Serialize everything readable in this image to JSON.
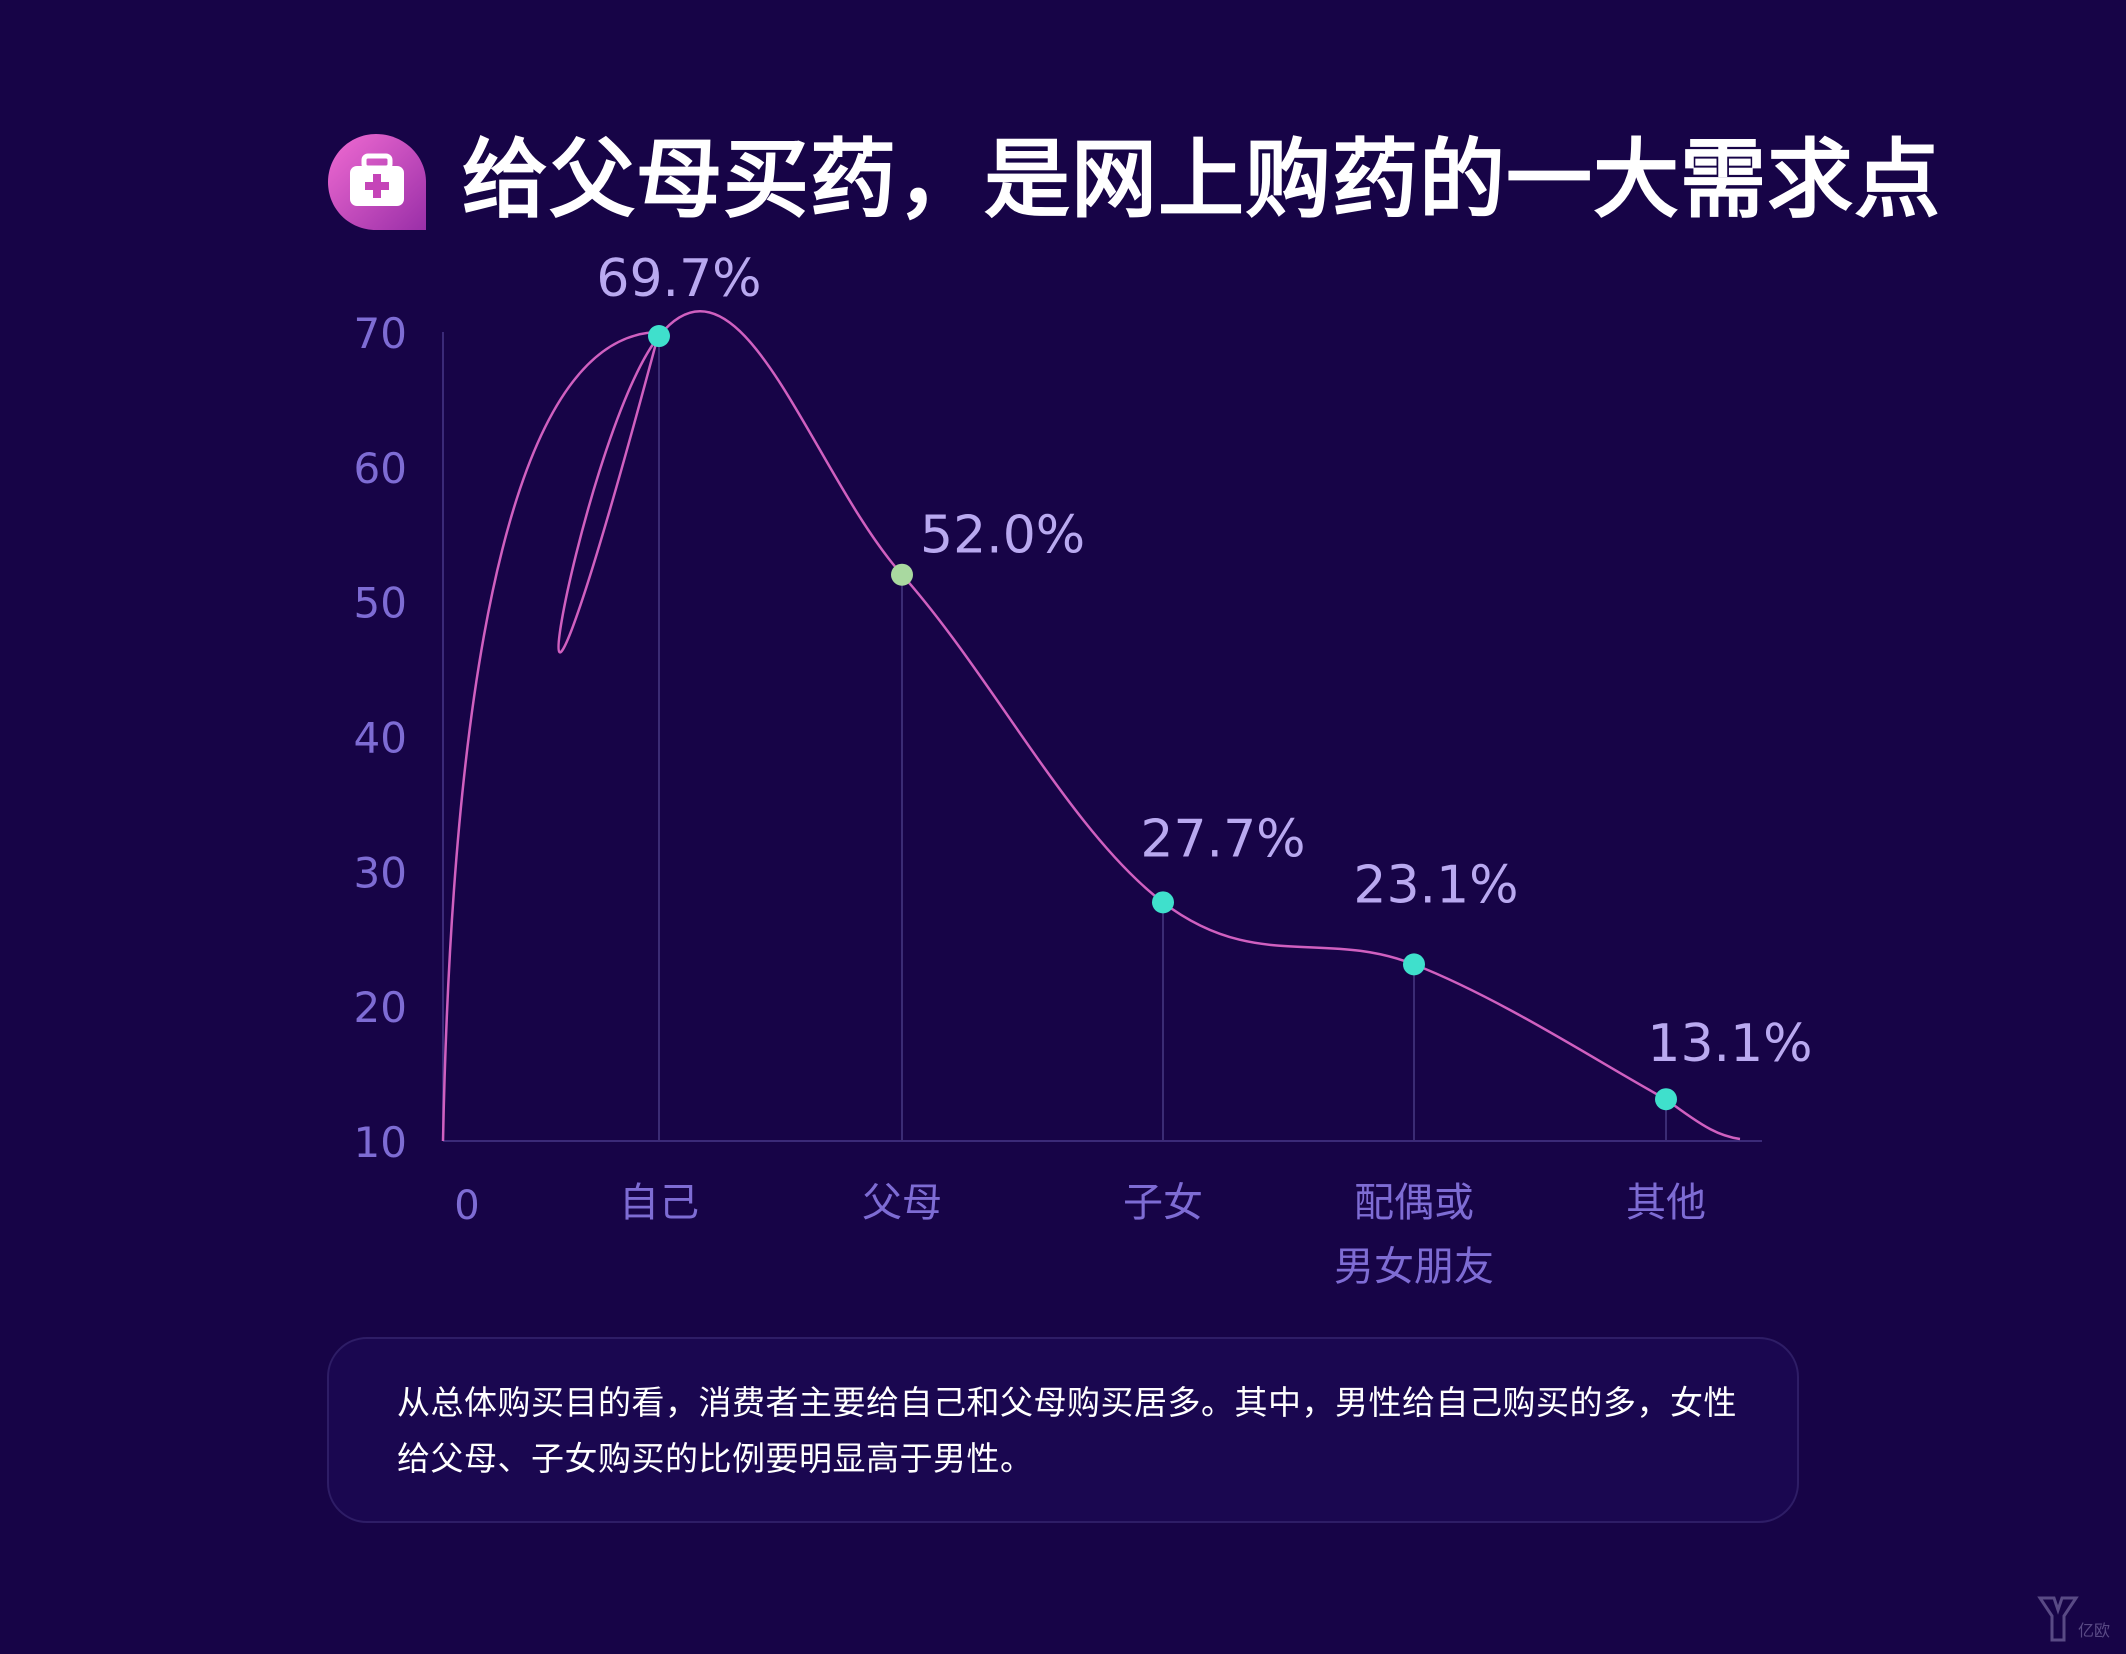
{
  "header": {
    "title": "给父母买药，是网上购药的一大需求点",
    "icon": "medical-kit-icon"
  },
  "chart_data": {
    "type": "line",
    "title": "",
    "xlabel": "",
    "ylabel": "",
    "ylim": [
      10,
      70
    ],
    "yticks": [
      "10",
      "20",
      "30",
      "40",
      "50",
      "60",
      "70"
    ],
    "origin_label": "0",
    "categories": [
      [
        "自己"
      ],
      [
        "父母"
      ],
      [
        "子女"
      ],
      [
        "配偶或",
        "男女朋友"
      ],
      [
        "其他"
      ]
    ],
    "values": [
      69.7,
      52.0,
      27.7,
      23.1,
      13.1
    ],
    "value_labels": [
      "69.7%",
      "52.0%",
      "27.7%",
      "23.1%",
      "13.1%"
    ],
    "grid": false,
    "colors": {
      "line": "#d060c0",
      "point": "#3fe0cc",
      "axis_text": "#7e6cd4",
      "value_text": "#b9a9f0"
    }
  },
  "note": {
    "text": "从总体购买目的看，消费者主要给自己和父母购买居多。其中，男性给自己购买的多，女性给父母、子女购买的比例要明显高于男性。"
  },
  "watermark": {
    "icon": "yiou-logo-icon",
    "text": "亿欧"
  }
}
